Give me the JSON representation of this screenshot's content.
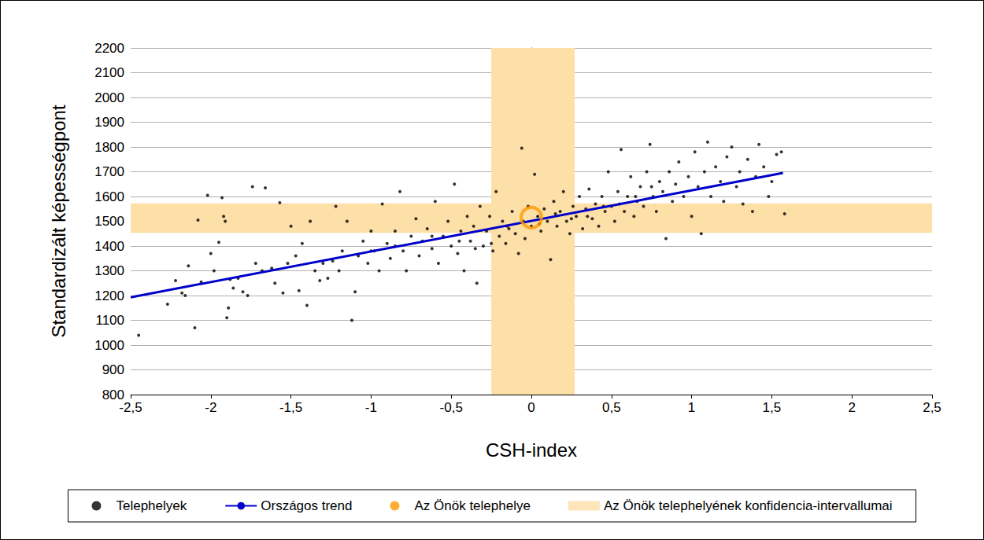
{
  "chart_data": {
    "type": "scatter",
    "xlabel": "CSH-index",
    "ylabel": "Standardizált képességpont",
    "xlim": [
      -2.5,
      2.5
    ],
    "xticks": [
      {
        "value": -2.5,
        "label": "-2,5"
      },
      -2,
      {
        "value": -1.5,
        "label": "-1,5"
      },
      -1,
      {
        "value": -0.5,
        "label": "-0,5"
      },
      0,
      {
        "value": 0.5,
        "label": "0,5"
      },
      1,
      {
        "value": 1.5,
        "label": "1,5"
      },
      2,
      {
        "value": 2.5,
        "label": "2,5"
      }
    ],
    "ylim": [
      800,
      2200
    ],
    "yticks": [
      800,
      900,
      1000,
      1100,
      1200,
      1300,
      1400,
      1500,
      1600,
      1700,
      1800,
      1900,
      2000,
      2100,
      2200
    ],
    "grid": true,
    "legend": "bottom",
    "series": [
      {
        "name": "Telephelyek",
        "type": "scatter",
        "color": "#000000",
        "marker": "circle",
        "x": [
          -2.45,
          -2.27,
          -2.22,
          -2.18,
          -2.16,
          -2.14,
          -2.1,
          -2.08,
          -2.06,
          -2.02,
          -2.0,
          -1.98,
          -1.95,
          -1.93,
          -1.92,
          -1.91,
          -1.9,
          -1.89,
          -1.88,
          -1.86,
          -1.83,
          -1.8,
          -1.77,
          -1.74,
          -1.72,
          -1.68,
          -1.66,
          -1.62,
          -1.6,
          -1.57,
          -1.55,
          -1.52,
          -1.5,
          -1.47,
          -1.45,
          -1.43,
          -1.4,
          -1.38,
          -1.35,
          -1.32,
          -1.3,
          -1.27,
          -1.24,
          -1.22,
          -1.2,
          -1.18,
          -1.15,
          -1.12,
          -1.1,
          -1.08,
          -1.05,
          -1.02,
          -1.0,
          -0.98,
          -0.95,
          -0.93,
          -0.9,
          -0.88,
          -0.85,
          -0.82,
          -0.8,
          -0.78,
          -0.75,
          -0.72,
          -0.7,
          -0.68,
          -0.65,
          -0.62,
          -0.6,
          -0.58,
          -0.55,
          -0.52,
          -0.5,
          -0.48,
          -0.46,
          -0.44,
          -0.42,
          -0.4,
          -0.38,
          -0.36,
          -0.34,
          -0.32,
          -0.3,
          -0.28,
          -0.26,
          -0.24,
          -0.22,
          -0.2,
          -0.18,
          -0.16,
          -0.14,
          -0.12,
          -0.1,
          -0.08,
          -0.06,
          -0.05,
          -0.04,
          -0.02,
          0.0,
          0.02,
          0.04,
          0.06,
          0.08,
          0.1,
          0.12,
          0.14,
          0.16,
          0.18,
          0.2,
          0.22,
          0.24,
          0.26,
          0.28,
          0.3,
          0.32,
          0.34,
          0.36,
          0.38,
          0.4,
          0.42,
          0.44,
          0.46,
          0.48,
          0.5,
          0.52,
          0.54,
          0.56,
          0.58,
          0.6,
          0.62,
          0.64,
          0.66,
          0.68,
          0.7,
          0.72,
          0.74,
          0.76,
          0.78,
          0.8,
          0.82,
          0.84,
          0.86,
          0.88,
          0.9,
          0.92,
          0.95,
          0.98,
          1.0,
          1.02,
          1.04,
          1.06,
          1.08,
          1.1,
          1.12,
          1.15,
          1.18,
          1.2,
          1.22,
          1.25,
          1.28,
          1.3,
          1.32,
          1.35,
          1.38,
          1.4,
          1.42,
          1.45,
          1.48,
          1.5,
          1.53,
          1.56,
          1.58,
          -0.62,
          -0.45,
          -0.35,
          -0.15,
          0.05,
          0.15,
          0.25,
          0.35,
          0.45,
          0.55,
          0.65,
          0.75,
          -0.25,
          -0.85,
          -1.0
        ],
        "values": [
          1040,
          1165,
          1260,
          1210,
          1200,
          1320,
          1070,
          1505,
          1255,
          1605,
          1370,
          1300,
          1415,
          1595,
          1520,
          1500,
          1110,
          1150,
          1265,
          1230,
          1270,
          1215,
          1200,
          1640,
          1330,
          1300,
          1635,
          1310,
          1250,
          1575,
          1210,
          1330,
          1480,
          1360,
          1220,
          1410,
          1160,
          1500,
          1300,
          1260,
          1330,
          1270,
          1340,
          1560,
          1300,
          1380,
          1500,
          1100,
          1215,
          1360,
          1420,
          1330,
          1460,
          1380,
          1300,
          1570,
          1410,
          1350,
          1460,
          1620,
          1380,
          1300,
          1440,
          1510,
          1360,
          1420,
          1470,
          1390,
          1580,
          1330,
          1440,
          1500,
          1400,
          1650,
          1370,
          1460,
          1300,
          1520,
          1420,
          1480,
          1250,
          1560,
          1400,
          1460,
          1520,
          1380,
          1620,
          1440,
          1500,
          1410,
          1470,
          1540,
          1450,
          1370,
          1795,
          1500,
          1430,
          1560,
          1480,
          1690,
          1520,
          1460,
          1550,
          1500,
          1345,
          1580,
          1480,
          1540,
          1620,
          1500,
          1450,
          1560,
          1520,
          1600,
          1470,
          1550,
          1630,
          1510,
          1570,
          1480,
          1600,
          1540,
          1700,
          1560,
          1500,
          1620,
          1790,
          1540,
          1600,
          1680,
          1520,
          1580,
          1640,
          1560,
          1700,
          1810,
          1600,
          1540,
          1660,
          1620,
          1430,
          1700,
          1580,
          1650,
          1740,
          1600,
          1680,
          1520,
          1780,
          1640,
          1450,
          1700,
          1820,
          1600,
          1720,
          1660,
          1580,
          1760,
          1800,
          1640,
          1700,
          1570,
          1750,
          1540,
          1680,
          1810,
          1720,
          1600,
          1660,
          1770,
          1780,
          1530,
          1440,
          1420,
          1390,
          1480,
          1490,
          1530,
          1510,
          1520,
          1560,
          1570,
          1600,
          1640,
          1410,
          1400,
          1380
        ]
      },
      {
        "name": "Országos trend",
        "type": "line",
        "color": "#0000cc",
        "line_style": "solid",
        "x": [
          -2.5,
          1.57
        ],
        "values": [
          1193,
          1695
        ]
      },
      {
        "name": "Az Önök telephelye",
        "type": "scatter",
        "color": "#ff9900",
        "marker": "ring",
        "x": [
          0.0
        ],
        "values": [
          1515
        ]
      },
      {
        "name": "Az Önök telephelyének konfidencia-intervallumai",
        "type": "band",
        "color": "#fddfa8",
        "x_range": [
          -0.25,
          0.27
        ],
        "y_range": [
          1453,
          1572
        ]
      }
    ]
  }
}
